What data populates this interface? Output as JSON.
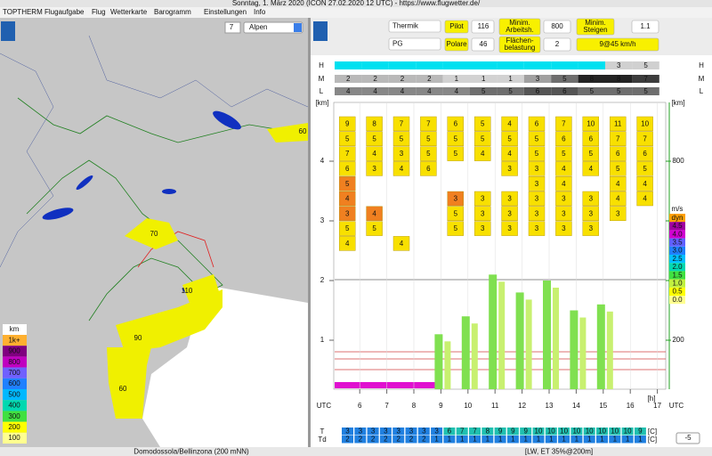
{
  "window_title": "Sonntag, 1. März 2020 (ICON 27.02.2020 12 UTC) - https://www.flugwetter.de/",
  "menu": [
    "TOPTHERM",
    "Flugaufgabe",
    "Flug",
    "Wetterkarte",
    "Barogramm",
    "Einstellungen",
    "Info"
  ],
  "map": {
    "zoom": "7",
    "region": "Alpen",
    "labels": [
      "60",
      "70",
      "110",
      "90",
      "60"
    ],
    "legend": {
      "title": "km",
      "items": [
        {
          "label": "1k+",
          "color": "#ffb030"
        },
        {
          "label": "900",
          "color": "#800080"
        },
        {
          "label": "800",
          "color": "#c000c0"
        },
        {
          "label": "700",
          "color": "#7060ff"
        },
        {
          "label": "600",
          "color": "#2080ff"
        },
        {
          "label": "500",
          "color": "#00b8ff"
        },
        {
          "label": "400",
          "color": "#00d8b0"
        },
        {
          "label": "300",
          "color": "#40e040"
        },
        {
          "label": "200",
          "color": "#ffff00"
        },
        {
          "label": "100",
          "color": "#ffff90"
        }
      ]
    }
  },
  "controls": {
    "mode": "Thermik",
    "glider": "PG",
    "pilot_label": "Pilot",
    "pilot": "116",
    "polar_label": "Polare",
    "polar": "46",
    "min_work_label": [
      "Minim.",
      "Arbeitsh."
    ],
    "min_work": "800",
    "wing_load_label": [
      "Flächen-",
      "belastung"
    ],
    "wing_load": "2",
    "min_climb_label": [
      "Minim.",
      "Steigen"
    ],
    "min_climb": "1.1",
    "speed": "9@45 km/h"
  },
  "chart": {
    "row_labels": [
      "H",
      "M",
      "L"
    ],
    "H": [
      null,
      null,
      null,
      null,
      null,
      null,
      null,
      null,
      null,
      null,
      3,
      5
    ],
    "M": [
      2,
      2,
      2,
      2,
      1,
      1,
      1,
      3,
      5,
      8,
      8,
      7
    ],
    "L": [
      4,
      4,
      4,
      4,
      4,
      5,
      5,
      6,
      6,
      5,
      5,
      5
    ],
    "y_unit": "[km]",
    "y2_unit": "[km]",
    "ylim": [
      0,
      5
    ],
    "yticks": [
      1,
      2,
      3,
      4
    ],
    "y2lim": [
      0,
      1000
    ],
    "y2ticks": [
      200,
      400,
      600,
      800
    ],
    "x_label": "UTC",
    "x_unit": "[h]",
    "hours": [
      6,
      7,
      8,
      9,
      10,
      11,
      12,
      13,
      14,
      15,
      16,
      17
    ],
    "boxes": [
      [
        9,
        5,
        7,
        6,
        {
          "value": 5,
          "color": "#f08020"
        },
        {
          "value": 4,
          "color": "#f08020"
        },
        {
          "value": 3,
          "color": "#f08020"
        },
        5,
        4
      ],
      [
        8,
        5,
        4,
        3,
        null,
        null,
        {
          "value": 4,
          "color": "#f08020"
        },
        5,
        null
      ],
      [
        7,
        5,
        3,
        4,
        null,
        null,
        null,
        null,
        4
      ],
      [
        7,
        5,
        5,
        6
      ],
      [
        6,
        5,
        5,
        null,
        null,
        {
          "value": 3,
          "color": "#f08020"
        },
        5,
        5
      ],
      [
        5,
        5,
        4,
        null,
        null,
        3,
        3,
        3
      ],
      [
        4,
        5,
        4,
        3,
        null,
        3,
        3,
        3
      ],
      [
        6,
        5,
        5,
        3,
        3,
        3,
        3,
        3
      ],
      [
        7,
        6,
        5,
        4,
        4,
        3,
        3,
        3
      ],
      [
        10,
        6,
        5,
        4,
        null,
        3,
        3,
        3
      ],
      [
        11,
        7,
        6,
        5,
        4,
        4,
        3
      ],
      [
        10,
        7,
        6,
        5,
        4,
        4
      ]
    ],
    "box_color": "#f8e000",
    "thermal_tops_km": [
      null,
      null,
      null,
      1.1,
      1.4,
      2.1,
      1.8,
      2.0,
      1.5,
      1.6,
      null,
      null
    ],
    "thermal_color": "#80e050",
    "lift_legend": {
      "title": "m/s",
      "items": [
        {
          "label": "dyn",
          "color": "#ffa000"
        },
        {
          "label": "4.5",
          "color": "#a000a0"
        },
        {
          "label": "4.0",
          "color": "#d000d0"
        },
        {
          "label": "3.5",
          "color": "#6060ff"
        },
        {
          "label": "3.0",
          "color": "#2080ff"
        },
        {
          "label": "2.5",
          "color": "#00c0ff"
        },
        {
          "label": "2.0",
          "color": "#00d8b0"
        },
        {
          "label": "1.5",
          "color": "#40e040"
        },
        {
          "label": "1.0",
          "color": "#c0f040"
        },
        {
          "label": "0.5",
          "color": "#ffff00"
        },
        {
          "label": "0.0",
          "color": "#ffff90"
        }
      ]
    },
    "temp_labels": [
      "T",
      "Td"
    ],
    "temp_unit": "[C]",
    "T": [
      3,
      3,
      3,
      3,
      3,
      3,
      3,
      3,
      6,
      7,
      7,
      8,
      9,
      9,
      9,
      10,
      10,
      10,
      10,
      10,
      10,
      10,
      10,
      9
    ],
    "Td": [
      2,
      2,
      2,
      2,
      2,
      2,
      2,
      1,
      1,
      1,
      1,
      1,
      1,
      1,
      1,
      1,
      1,
      1,
      1,
      1,
      1,
      1,
      1,
      1
    ],
    "offset": "-5"
  },
  "status": {
    "location": "Domodossola/Bellinzona (200 mNN)",
    "info": "[LW, ET  35%@200m]"
  }
}
